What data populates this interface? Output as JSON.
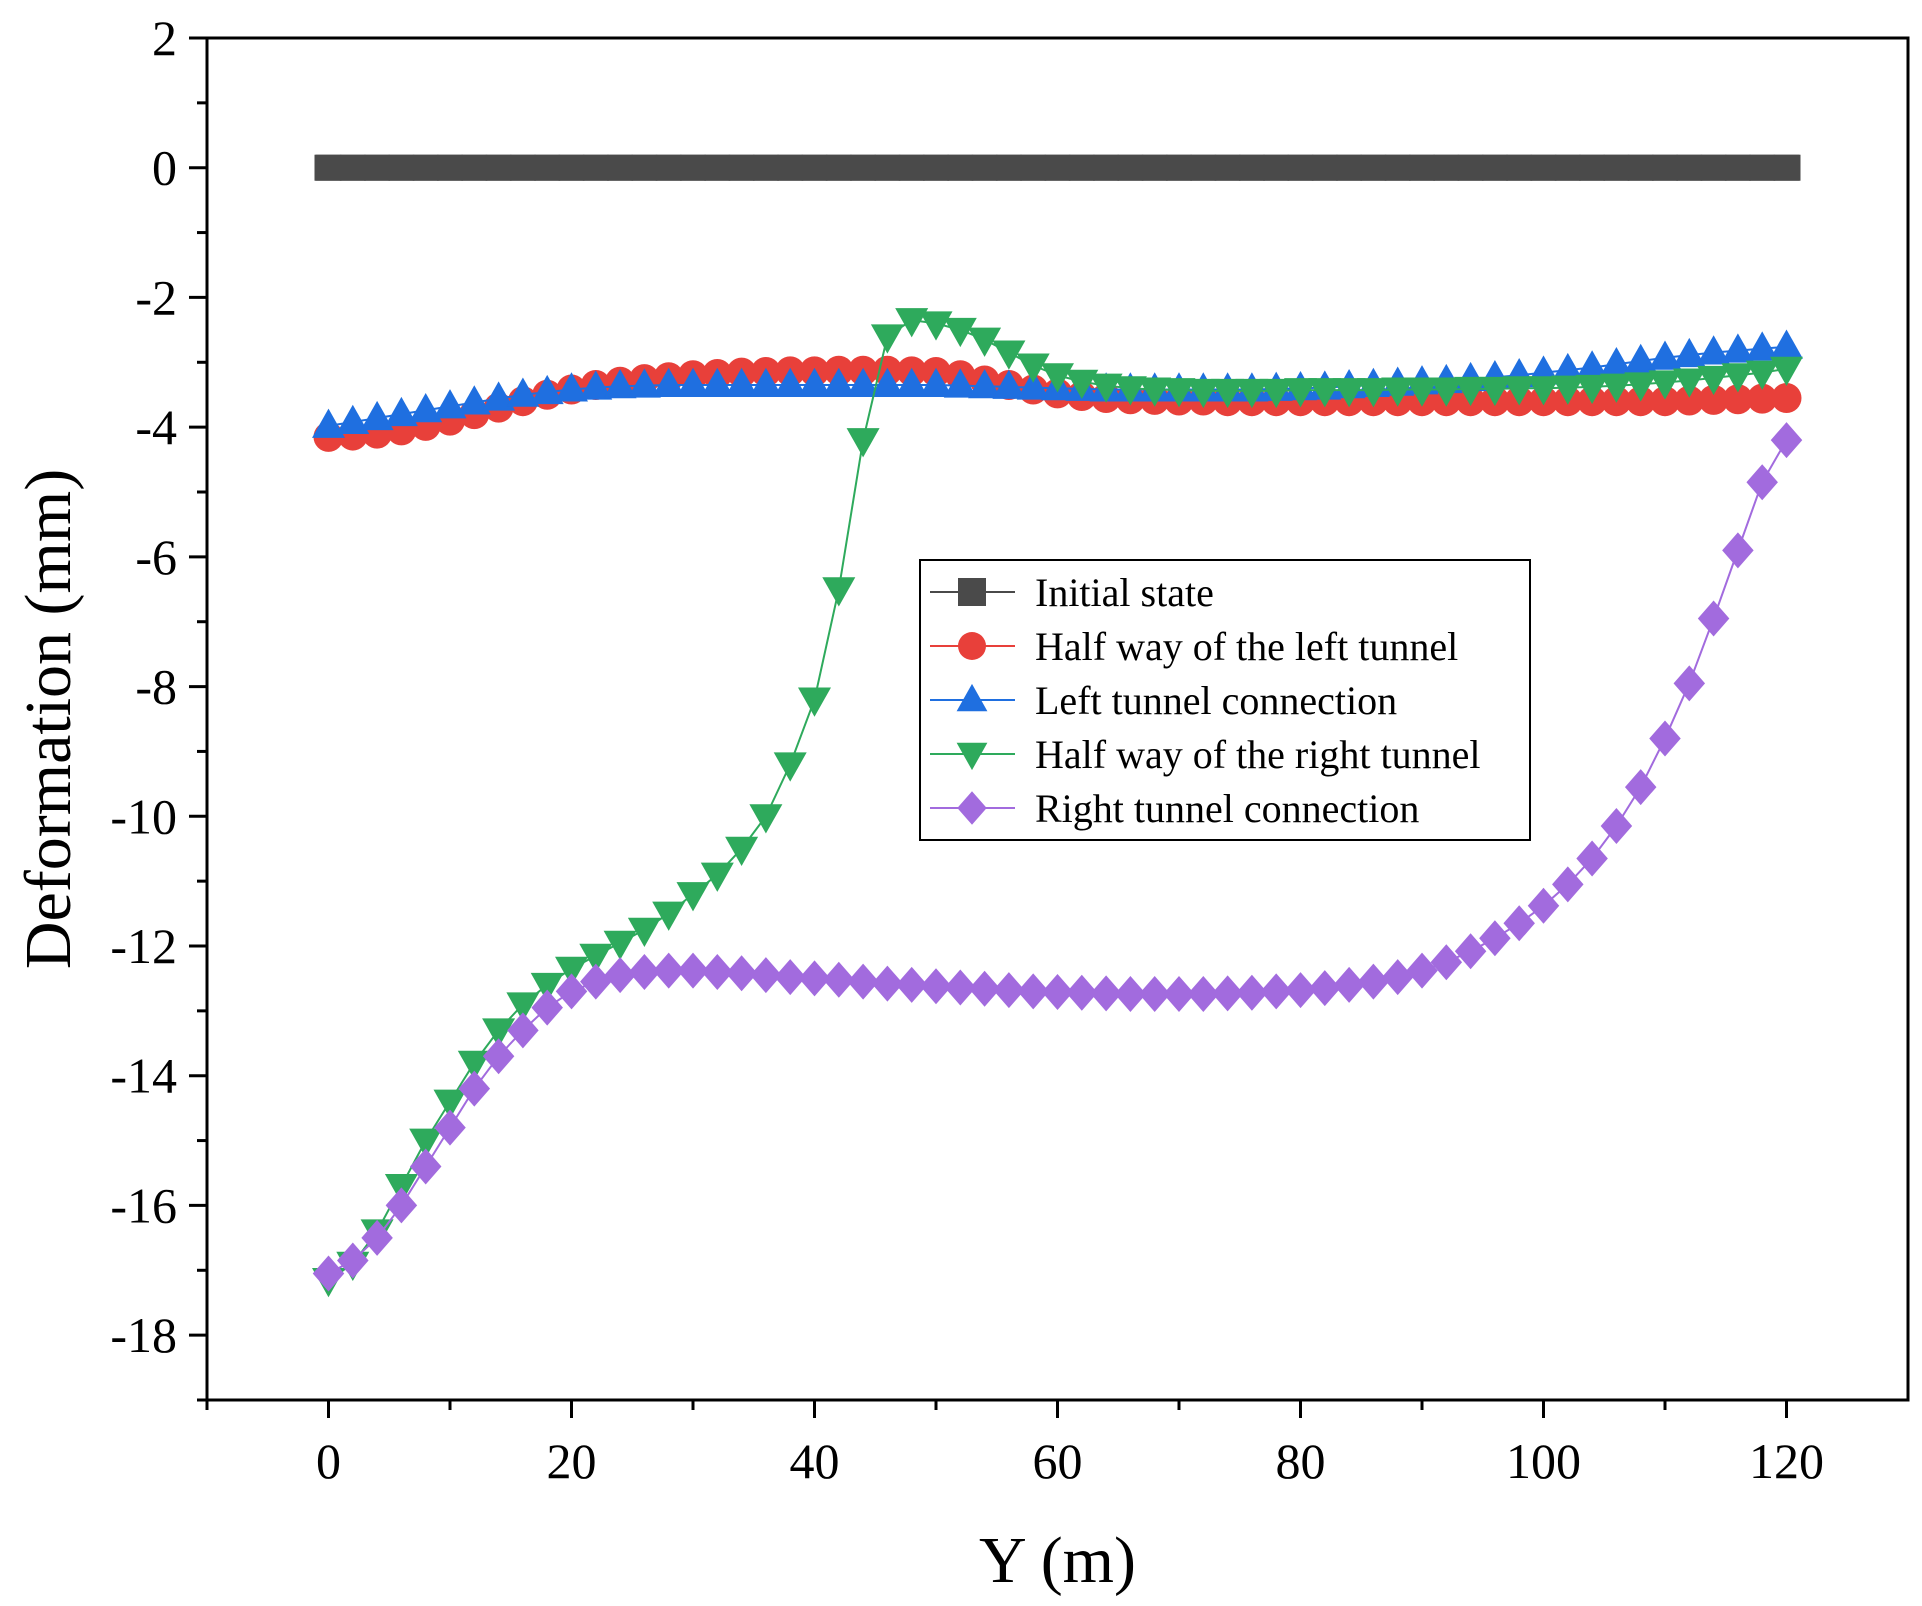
{
  "chart_data": {
    "type": "line",
    "xlabel": "Y (m)",
    "ylabel": "Deformation (mm)",
    "xlim": [
      -10,
      130
    ],
    "ylim": [
      -19,
      2
    ],
    "xticks": [
      0,
      20,
      40,
      60,
      80,
      100,
      120
    ],
    "xtick_labels": [
      "0",
      "20",
      "40",
      "60",
      "80",
      "100",
      "120"
    ],
    "yticks": [
      2,
      0,
      -2,
      -4,
      -6,
      -8,
      -10,
      -12,
      -14,
      -16,
      -18
    ],
    "ytick_labels": [
      "2",
      "0",
      "-2",
      "-4",
      "-6",
      "-8",
      "-10",
      "-12",
      "-14",
      "-16",
      "-18"
    ],
    "grid": false,
    "legend_position": "center-right",
    "x": [
      0,
      2,
      4,
      6,
      8,
      10,
      12,
      14,
      16,
      18,
      20,
      22,
      24,
      26,
      28,
      30,
      32,
      34,
      36,
      38,
      40,
      42,
      44,
      46,
      48,
      50,
      52,
      54,
      56,
      58,
      60,
      62,
      64,
      66,
      68,
      70,
      72,
      74,
      76,
      78,
      80,
      82,
      84,
      86,
      88,
      90,
      92,
      94,
      96,
      98,
      100,
      102,
      104,
      106,
      108,
      110,
      112,
      114,
      116,
      118,
      120
    ],
    "series": [
      {
        "name": "Initial state",
        "color": "#4a4a4a",
        "marker": "square",
        "values": [
          0,
          0,
          0,
          0,
          0,
          0,
          0,
          0,
          0,
          0,
          0,
          0,
          0,
          0,
          0,
          0,
          0,
          0,
          0,
          0,
          0,
          0,
          0,
          0,
          0,
          0,
          0,
          0,
          0,
          0,
          0,
          0,
          0,
          0,
          0,
          0,
          0,
          0,
          0,
          0,
          0,
          0,
          0,
          0,
          0,
          0,
          0,
          0,
          0,
          0,
          0,
          0,
          0,
          0,
          0,
          0,
          0,
          0,
          0,
          0,
          0
        ]
      },
      {
        "name": "Half way of the left tunnel",
        "color": "#e8403a",
        "marker": "circle",
        "values": [
          -4.15,
          -4.13,
          -4.1,
          -4.05,
          -3.98,
          -3.9,
          -3.8,
          -3.7,
          -3.6,
          -3.5,
          -3.42,
          -3.35,
          -3.3,
          -3.26,
          -3.23,
          -3.2,
          -3.18,
          -3.16,
          -3.15,
          -3.14,
          -3.14,
          -3.13,
          -3.13,
          -3.13,
          -3.14,
          -3.15,
          -3.2,
          -3.28,
          -3.35,
          -3.42,
          -3.48,
          -3.52,
          -3.55,
          -3.57,
          -3.58,
          -3.59,
          -3.59,
          -3.6,
          -3.6,
          -3.6,
          -3.6,
          -3.6,
          -3.6,
          -3.6,
          -3.6,
          -3.6,
          -3.6,
          -3.6,
          -3.6,
          -3.6,
          -3.6,
          -3.6,
          -3.6,
          -3.6,
          -3.6,
          -3.6,
          -3.59,
          -3.58,
          -3.57,
          -3.56,
          -3.55
        ]
      },
      {
        "name": "Left tunnel connection",
        "color": "#1f6fe0",
        "marker": "triangle-up",
        "values": [
          -3.98,
          -3.92,
          -3.86,
          -3.8,
          -3.74,
          -3.68,
          -3.62,
          -3.56,
          -3.5,
          -3.46,
          -3.42,
          -3.39,
          -3.37,
          -3.36,
          -3.35,
          -3.35,
          -3.35,
          -3.35,
          -3.35,
          -3.35,
          -3.35,
          -3.35,
          -3.35,
          -3.35,
          -3.35,
          -3.35,
          -3.36,
          -3.37,
          -3.38,
          -3.39,
          -3.4,
          -3.41,
          -3.42,
          -3.42,
          -3.42,
          -3.42,
          -3.42,
          -3.42,
          -3.42,
          -3.41,
          -3.4,
          -3.39,
          -3.37,
          -3.35,
          -3.33,
          -3.31,
          -3.29,
          -3.26,
          -3.23,
          -3.2,
          -3.16,
          -3.12,
          -3.08,
          -3.03,
          -2.98,
          -2.93,
          -2.89,
          -2.85,
          -2.82,
          -2.79,
          -2.76
        ]
      },
      {
        "name": "Half way of the right tunnel",
        "color": "#2eaa5c",
        "marker": "triangle-down",
        "values": [
          -17.15,
          -16.9,
          -16.4,
          -15.7,
          -15.0,
          -14.4,
          -13.8,
          -13.3,
          -12.9,
          -12.6,
          -12.35,
          -12.15,
          -11.95,
          -11.75,
          -11.5,
          -11.2,
          -10.9,
          -10.5,
          -10.0,
          -9.2,
          -8.2,
          -6.5,
          -4.2,
          -2.6,
          -2.35,
          -2.4,
          -2.5,
          -2.65,
          -2.85,
          -3.05,
          -3.2,
          -3.3,
          -3.36,
          -3.4,
          -3.42,
          -3.43,
          -3.44,
          -3.44,
          -3.44,
          -3.44,
          -3.43,
          -3.43,
          -3.43,
          -3.43,
          -3.42,
          -3.42,
          -3.42,
          -3.41,
          -3.41,
          -3.4,
          -3.4,
          -3.39,
          -3.38,
          -3.36,
          -3.34,
          -3.31,
          -3.28,
          -3.24,
          -3.2,
          -3.16,
          -3.1
        ]
      },
      {
        "name": "Right tunnel connection",
        "color": "#a26bde",
        "marker": "diamond",
        "values": [
          -17.05,
          -16.85,
          -16.5,
          -16.0,
          -15.4,
          -14.8,
          -14.2,
          -13.7,
          -13.3,
          -12.95,
          -12.7,
          -12.55,
          -12.45,
          -12.4,
          -12.38,
          -12.38,
          -12.4,
          -12.42,
          -12.45,
          -12.48,
          -12.5,
          -12.52,
          -12.55,
          -12.58,
          -12.6,
          -12.62,
          -12.64,
          -12.66,
          -12.68,
          -12.7,
          -12.71,
          -12.72,
          -12.73,
          -12.74,
          -12.74,
          -12.74,
          -12.74,
          -12.73,
          -12.72,
          -12.7,
          -12.68,
          -12.65,
          -12.6,
          -12.55,
          -12.48,
          -12.38,
          -12.25,
          -12.08,
          -11.88,
          -11.65,
          -11.38,
          -11.05,
          -10.65,
          -10.15,
          -9.55,
          -8.8,
          -7.95,
          -6.95,
          -5.9,
          -4.85,
          -4.2
        ]
      }
    ]
  }
}
